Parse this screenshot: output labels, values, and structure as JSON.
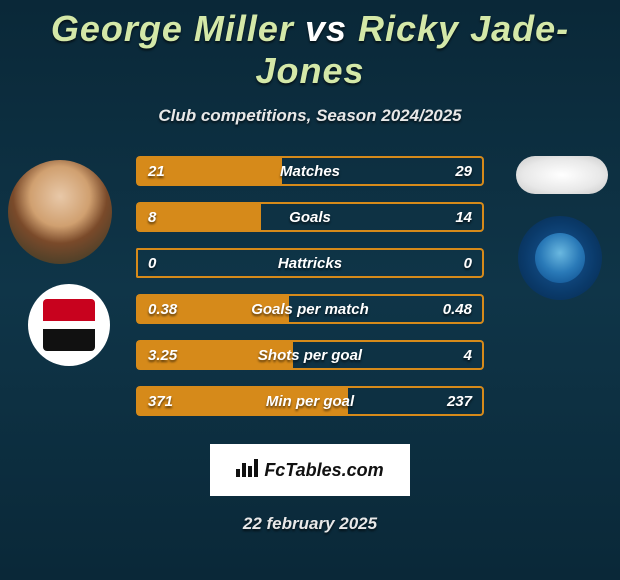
{
  "header": {
    "player1": "George Miller",
    "vs": "vs",
    "player2": "Ricky Jade-Jones",
    "subtitle": "Club competitions, Season 2024/2025"
  },
  "colors": {
    "bar_fill": "#d68a1a",
    "bar_border": "#d68a1a",
    "background_top": "#0a2838",
    "background_mid": "#0f3548",
    "title_accent": "#d4e8a8"
  },
  "avatars": {
    "player_left_alt": "George Miller photo",
    "club_left_alt": "Cheltenham Town FC",
    "player_right_alt": "Ricky Jade-Jones photo",
    "club_right_alt": "Peterborough United FC"
  },
  "stats": [
    {
      "label": "Matches",
      "a": "21",
      "b": "29",
      "pct_a": 42
    },
    {
      "label": "Goals",
      "a": "8",
      "b": "14",
      "pct_a": 36
    },
    {
      "label": "Hattricks",
      "a": "0",
      "b": "0",
      "pct_a": 0
    },
    {
      "label": "Goals per match",
      "a": "0.38",
      "b": "0.48",
      "pct_a": 44
    },
    {
      "label": "Shots per goal",
      "a": "3.25",
      "b": "4",
      "pct_a": 45
    },
    {
      "label": "Min per goal",
      "a": "371",
      "b": "237",
      "pct_a": 61
    }
  ],
  "footer": {
    "brand": "FcTables.com",
    "date": "22 february 2025"
  }
}
